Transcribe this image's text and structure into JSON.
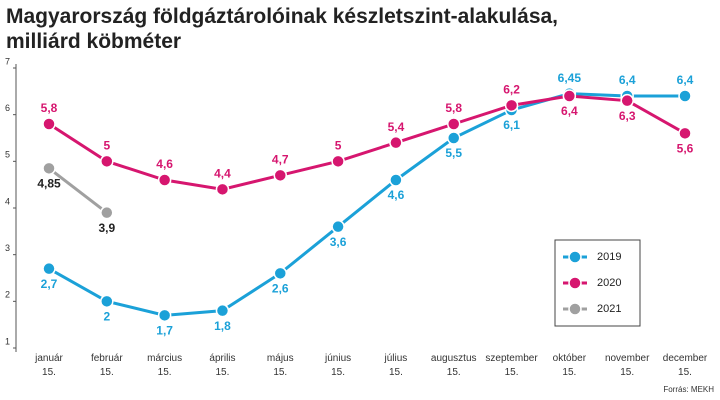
{
  "chart_data": {
    "type": "line",
    "title": "Magyarország földgáztárolóinak készletszint-alakulása,\nmilliárd köbméter",
    "source": "Forrás: MEKH",
    "categories": [
      "január\n15.",
      "február\n15.",
      "március\n15.",
      "április\n15.",
      "május\n15.",
      "június\n15.",
      "július\n15.",
      "augusztus\n15.",
      "szeptember\n15.",
      "október\n15.",
      "november\n15.",
      "december\n15."
    ],
    "ylim": [
      1,
      7
    ],
    "yticks": [
      1,
      2,
      3,
      4,
      5,
      6,
      7
    ],
    "grid": false,
    "legend": "right",
    "series": [
      {
        "name": "2019",
        "color": "#1ba1d8",
        "label_color": "#1ba1d8",
        "values": [
          2.7,
          2,
          1.7,
          1.8,
          2.6,
          3.6,
          4.6,
          5.5,
          6.1,
          6.45,
          6.4,
          6.4
        ],
        "value_labels": [
          "2,7",
          "2",
          "1,7",
          "1,8",
          "2,6",
          "3,6",
          "4,6",
          "5,5",
          "6,1",
          "6,45",
          "6,4",
          "6,4"
        ]
      },
      {
        "name": "2020",
        "color": "#d6166f",
        "label_color": "#d6166f",
        "values": [
          5.8,
          5,
          4.6,
          4.4,
          4.7,
          5,
          5.4,
          5.8,
          6.2,
          6.4,
          6.3,
          5.6
        ],
        "value_labels": [
          "5,8",
          "5",
          "4,6",
          "4,4",
          "4,7",
          "5",
          "5,4",
          "5,8",
          "6,2",
          "6,4",
          "6,3",
          "5,6"
        ]
      },
      {
        "name": "2021",
        "color": "#a0a0a0",
        "label_color": "#222222",
        "values": [
          4.85,
          3.9,
          null,
          null,
          null,
          null,
          null,
          null,
          null,
          null,
          null,
          null
        ],
        "value_labels": [
          "4,85",
          "3,9",
          null,
          null,
          null,
          null,
          null,
          null,
          null,
          null,
          null,
          null
        ]
      }
    ]
  }
}
